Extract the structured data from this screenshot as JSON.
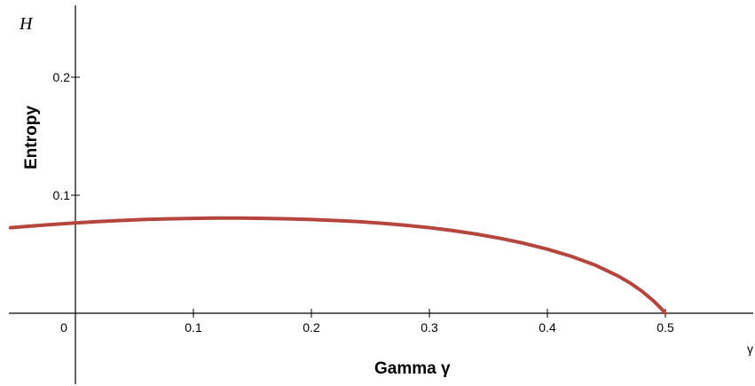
{
  "chart_data": {
    "type": "line",
    "title": "",
    "xlabel": "Gamma γ",
    "ylabel": "Entropy",
    "x_axis_symbol": "γ",
    "y_axis_symbol": "H",
    "xlim": [
      -0.055,
      0.57
    ],
    "ylim": [
      -0.06,
      0.265
    ],
    "xticks": [
      {
        "value": 0,
        "label": "0"
      },
      {
        "value": 0.1,
        "label": "0.1"
      },
      {
        "value": 0.2,
        "label": "0.2"
      },
      {
        "value": 0.3,
        "label": "0.3"
      },
      {
        "value": 0.4,
        "label": "0.4"
      },
      {
        "value": 0.5,
        "label": "0.5"
      }
    ],
    "yticks": [
      {
        "value": 0.1,
        "label": "0.1"
      },
      {
        "value": 0.2,
        "label": "0.2"
      }
    ],
    "grid": false,
    "series": [
      {
        "color": "#b5463d",
        "x": [
          -0.055,
          -0.04,
          -0.02,
          0,
          0.02,
          0.04,
          0.06,
          0.08,
          0.1,
          0.12,
          0.14,
          0.16,
          0.18,
          0.2,
          0.22,
          0.24,
          0.26,
          0.28,
          0.3,
          0.32,
          0.34,
          0.36,
          0.38,
          0.4,
          0.42,
          0.44,
          0.46,
          0.47,
          0.48,
          0.49,
          0.495,
          0.5
        ],
        "y": [
          0.0725,
          0.0737,
          0.0752,
          0.0765,
          0.0777,
          0.0787,
          0.0795,
          0.08,
          0.0804,
          0.0806,
          0.0806,
          0.0804,
          0.08,
          0.0794,
          0.0786,
          0.0776,
          0.0762,
          0.0745,
          0.0725,
          0.07,
          0.067,
          0.0635,
          0.0593,
          0.0543,
          0.0483,
          0.041,
          0.0315,
          0.0257,
          0.0188,
          0.0104,
          0.0055,
          0.0
        ]
      }
    ]
  }
}
